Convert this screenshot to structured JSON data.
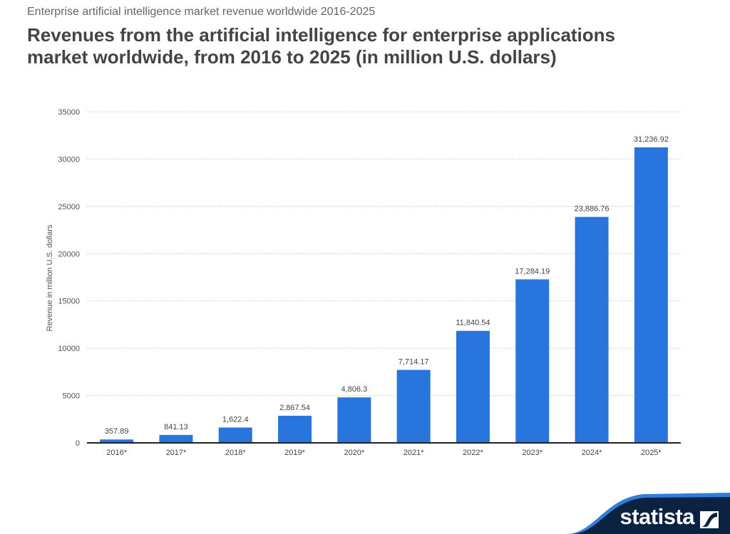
{
  "header": {
    "subtitle": "Enterprise artificial intelligence market revenue worldwide 2016-2025",
    "title": "Revenues from the artificial intelligence for enterprise applications market worldwide, from 2016 to 2025 (in million U.S. dollars)"
  },
  "brand": {
    "logo_text": "statista",
    "navy": "#0b2341",
    "accent": "#2e7fd9"
  },
  "chart_data": {
    "type": "bar",
    "title": "Revenues from the artificial intelligence for enterprise applications market worldwide, from 2016 to 2025 (in million U.S. dollars)",
    "xlabel": "",
    "ylabel": "Revenue in million U.S. dollars",
    "ylim": [
      0,
      35000
    ],
    "yticks": [
      0,
      5000,
      10000,
      15000,
      20000,
      25000,
      30000,
      35000
    ],
    "grid": true,
    "bar_color": "#2876dd",
    "categories": [
      "2016*",
      "2017*",
      "2018*",
      "2019*",
      "2020*",
      "2021*",
      "2022*",
      "2023*",
      "2024*",
      "2025*"
    ],
    "values": [
      357.89,
      841.13,
      1622.4,
      2867.54,
      4806.3,
      7714.17,
      11840.54,
      17284.19,
      23886.76,
      31236.92
    ],
    "data_labels": [
      "357.89",
      "841.13",
      "1,622.4",
      "2,867.54",
      "4,806.3",
      "7,714.17",
      "11,840.54",
      "17,284.19",
      "23,886.76",
      "31,236.92"
    ]
  }
}
